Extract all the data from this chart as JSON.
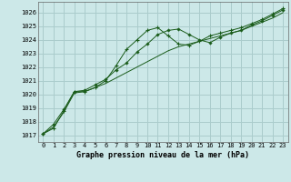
{
  "title": "Graphe pression niveau de la mer (hPa)",
  "bg_color": "#cce8e8",
  "grid_color": "#aacccc",
  "line_color": "#1a5c1a",
  "marker_color": "#1a5c1a",
  "xlim": [
    -0.5,
    23.5
  ],
  "ylim": [
    1016.5,
    1026.8
  ],
  "yticks": [
    1017,
    1018,
    1019,
    1020,
    1021,
    1022,
    1023,
    1024,
    1025,
    1026
  ],
  "xticks": [
    0,
    1,
    2,
    3,
    4,
    5,
    6,
    7,
    8,
    9,
    10,
    11,
    12,
    13,
    14,
    15,
    16,
    17,
    18,
    19,
    20,
    21,
    22,
    23
  ],
  "series1_x": [
    0,
    1,
    2,
    3,
    4,
    5,
    6,
    7,
    8,
    9,
    10,
    11,
    12,
    13,
    14,
    15,
    16,
    17,
    18,
    19,
    20,
    21,
    22,
    23
  ],
  "series1_y": [
    1017.1,
    1017.8,
    1018.9,
    1020.2,
    1020.3,
    1020.7,
    1021.1,
    1021.8,
    1022.3,
    1023.1,
    1023.7,
    1024.4,
    1024.7,
    1024.8,
    1024.4,
    1024.0,
    1023.8,
    1024.2,
    1024.5,
    1024.7,
    1025.1,
    1025.4,
    1025.8,
    1026.2
  ],
  "series2_x": [
    0,
    1,
    2,
    3,
    4,
    5,
    6,
    7,
    8,
    9,
    10,
    11,
    12,
    13,
    14,
    15,
    16,
    17,
    18,
    19,
    20,
    21,
    22,
    23
  ],
  "series2_y": [
    1017.1,
    1017.6,
    1018.7,
    1020.1,
    1020.2,
    1020.5,
    1020.8,
    1021.2,
    1021.6,
    1022.0,
    1022.4,
    1022.8,
    1023.2,
    1023.5,
    1023.7,
    1023.9,
    1024.1,
    1024.3,
    1024.5,
    1024.7,
    1025.0,
    1025.3,
    1025.6,
    1026.0
  ],
  "series3_x": [
    0,
    1,
    2,
    3,
    4,
    5,
    6,
    7,
    8,
    9,
    10,
    11,
    12,
    13,
    14,
    15,
    16,
    17,
    18,
    19,
    20,
    21,
    22,
    23
  ],
  "series3_y": [
    1017.1,
    1017.5,
    1018.8,
    1020.2,
    1020.2,
    1020.5,
    1021.0,
    1022.1,
    1023.3,
    1024.0,
    1024.7,
    1024.9,
    1024.3,
    1023.7,
    1023.6,
    1023.9,
    1024.3,
    1024.5,
    1024.7,
    1024.9,
    1025.2,
    1025.5,
    1025.9,
    1026.3
  ]
}
